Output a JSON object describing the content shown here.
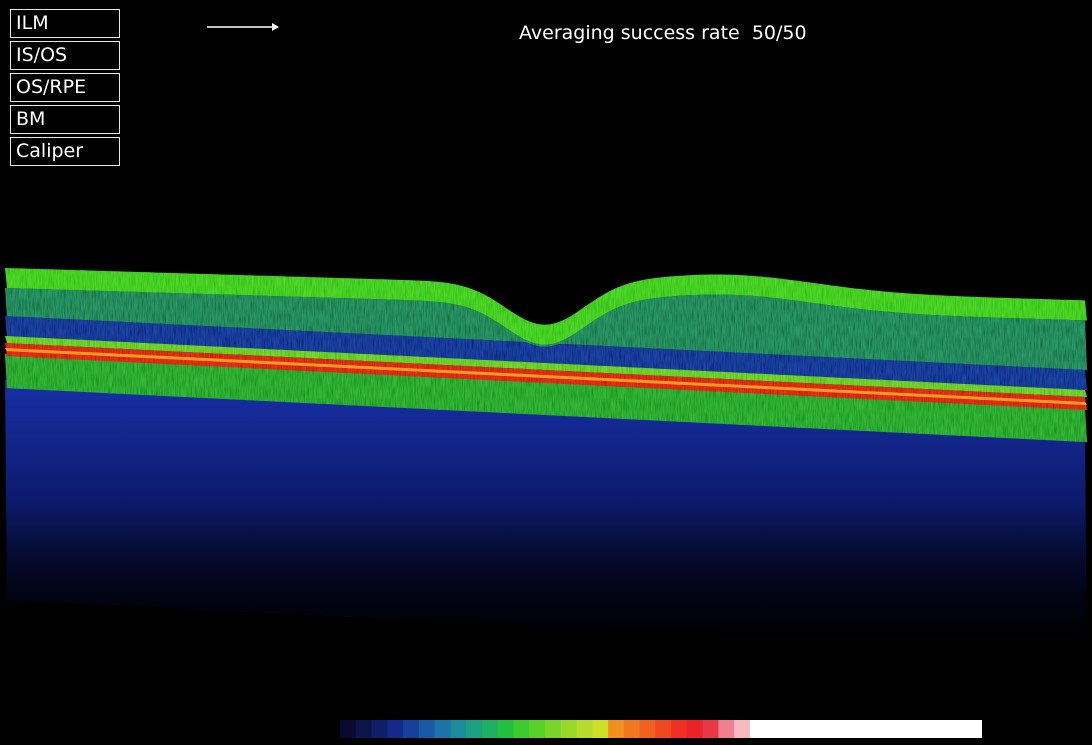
{
  "toolbar": {
    "buttons": [
      "ILM",
      "IS/OS",
      "OS/RPE",
      "BM",
      "Caliper"
    ]
  },
  "status": {
    "label": "Averaging success rate",
    "value": "50/50"
  }
}
